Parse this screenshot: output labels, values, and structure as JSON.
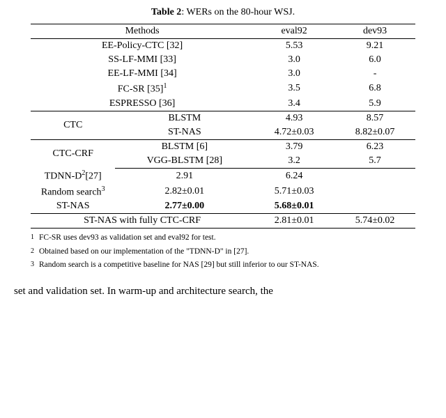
{
  "caption_prefix": "Table 2",
  "caption_rest": ": WERs on the 80-hour WSJ.",
  "header": {
    "methods": "Methods",
    "eval92": "eval92",
    "dev93": "dev93"
  },
  "sec1": [
    {
      "name": "EE-Policy-CTC [32]",
      "eval92": "5.53",
      "dev93": "9.21"
    },
    {
      "name": "SS-LF-MMI [33]",
      "eval92": "3.0",
      "dev93": "6.0"
    },
    {
      "name": "EE-LF-MMI [34]",
      "eval92": "3.0",
      "dev93": "-"
    },
    {
      "name_html": "FC-SR [35]<span class='sup'>1</span>",
      "eval92": "3.5",
      "dev93": "6.8"
    },
    {
      "name": "ESPRESSO [36]",
      "eval92": "3.4",
      "dev93": "5.9"
    }
  ],
  "ctc_label": "CTC",
  "ctc": [
    {
      "name": "BLSTM",
      "eval92": "4.93",
      "dev93": "8.57"
    },
    {
      "name": "ST-NAS",
      "eval92": "4.72±0.03",
      "dev93": "8.82±0.07"
    }
  ],
  "ctccrf_label": "CTC-CRF",
  "ctccrf_a": [
    {
      "name": "BLSTM [6]",
      "eval92": "3.79",
      "dev93": "6.23"
    },
    {
      "name": "VGG-BLSTM [28]",
      "eval92": "3.2",
      "dev93": "5.7"
    }
  ],
  "ctccrf_b": [
    {
      "name_html": "TDNN-D<span class='sup'>2</span>[27]",
      "eval92": "2.91",
      "dev93": "6.24"
    },
    {
      "name_html": "Random search<span class='sup'>3</span>",
      "eval92": "2.82±0.01",
      "dev93": "5.71±0.03"
    },
    {
      "name": "ST-NAS",
      "eval92_bold": "2.77±0.00",
      "dev93_bold": "5.68±0.01"
    }
  ],
  "last": {
    "name": "ST-NAS with fully CTC-CRF",
    "eval92": "2.81±0.01",
    "dev93": "5.74±0.02"
  },
  "footnotes": [
    {
      "marker": "1",
      "text": "FC-SR uses dev93 as validation set and eval92 for test."
    },
    {
      "marker": "2",
      "text": "Obtained based on our implementation of the \"TDNN-D\" in [27]."
    },
    {
      "marker": "3",
      "text": "Random search is a competitive baseline for NAS [29] but still inferior to our ST-NAS."
    }
  ],
  "bottom": "set and validation set.  In warm-up and architecture search, the"
}
